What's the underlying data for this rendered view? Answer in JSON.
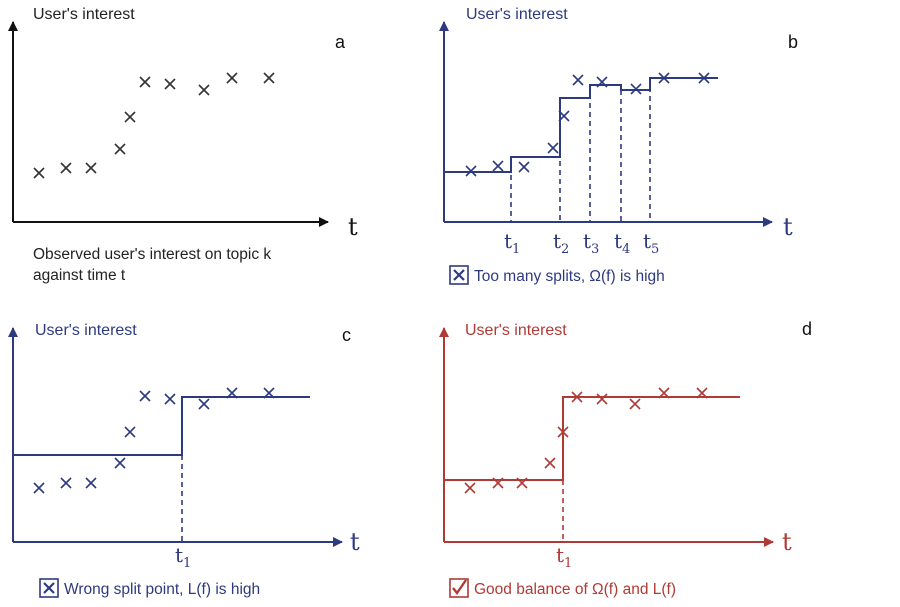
{
  "panels": [
    {
      "id": "a",
      "panel_label": "a",
      "y_axis_label": "User's interest",
      "x_axis_label": "t",
      "caption_lines": [
        "Observed user's interest on topic k",
        "against time t"
      ],
      "colors": {
        "axis": "#111111",
        "marks": "#333333",
        "text": "#222222"
      }
    },
    {
      "id": "b",
      "panel_label": "b",
      "y_axis_label": "User's interest",
      "x_axis_label": "t",
      "split_labels": [
        {
          "main": "t",
          "sub": "1"
        },
        {
          "main": "t",
          "sub": "2"
        },
        {
          "main": "t",
          "sub": "3"
        },
        {
          "main": "t",
          "sub": "4"
        },
        {
          "main": "t",
          "sub": "5"
        }
      ],
      "caption_icon": "x-box-icon",
      "caption": "Too many splits, Ω(f) is high",
      "colors": {
        "axis": "#2e3a80",
        "marks": "#2e3a80",
        "text": "#2e3a80"
      }
    },
    {
      "id": "c",
      "panel_label": "c",
      "y_axis_label": "User's interest",
      "x_axis_label": "t",
      "split_labels": [
        {
          "main": "t",
          "sub": "1"
        }
      ],
      "caption_icon": "x-box-icon",
      "caption": "Wrong split point, L(f) is high",
      "colors": {
        "axis": "#2e3a80",
        "marks": "#2e3a80",
        "text": "#2e3a80"
      }
    },
    {
      "id": "d",
      "panel_label": "d",
      "y_axis_label": "User's interest",
      "x_axis_label": "t",
      "split_labels": [
        {
          "main": "t",
          "sub": "1"
        }
      ],
      "caption_icon": "checkmark-box-icon",
      "caption": "Good balance of Ω(f) and L(f)",
      "colors": {
        "axis": "#b03a36",
        "marks": "#b03a36",
        "text": "#b03a36"
      }
    }
  ]
}
